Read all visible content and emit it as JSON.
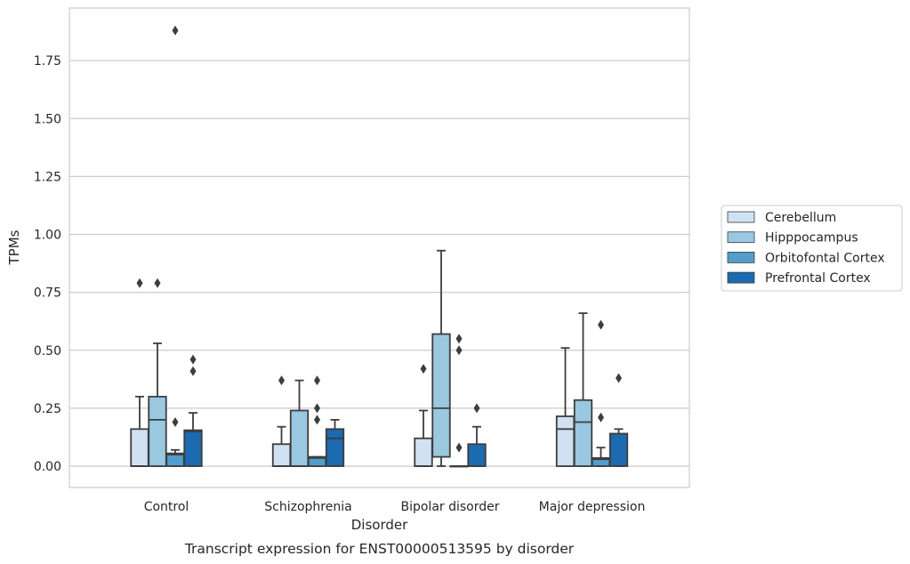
{
  "chart_data": {
    "type": "box",
    "title": "",
    "caption": "Transcript expression for ENST00000513595 by disorder",
    "xlabel": "Disorder",
    "ylabel": "TPMs",
    "ylim": [
      -0.09,
      1.98
    ],
    "yticks": [
      "0.00",
      "0.25",
      "0.50",
      "0.75",
      "1.00",
      "1.25",
      "1.50",
      "1.75"
    ],
    "ytick_values": [
      0,
      0.25,
      0.5,
      0.75,
      1.0,
      1.25,
      1.5,
      1.75
    ],
    "grid": "horizontal",
    "legend_placement": "right",
    "categories": [
      "Control",
      "Schizophrenia",
      "Bipolar disorder",
      "Major depression"
    ],
    "series": [
      {
        "name": "Cerebellum",
        "color": "#d0e1f2",
        "boxes": [
          {
            "q1": 0.0,
            "median": 0.0,
            "q3": 0.16,
            "whisker_low": 0.0,
            "whisker_high": 0.3,
            "outliers": [
              0.79
            ]
          },
          {
            "q1": 0.0,
            "median": 0.0,
            "q3": 0.095,
            "whisker_low": 0.0,
            "whisker_high": 0.17,
            "outliers": [
              0.37
            ]
          },
          {
            "q1": 0.0,
            "median": 0.0,
            "q3": 0.12,
            "whisker_low": 0.0,
            "whisker_high": 0.24,
            "outliers": [
              0.42
            ]
          },
          {
            "q1": 0.0,
            "median": 0.16,
            "q3": 0.215,
            "whisker_low": 0.0,
            "whisker_high": 0.51,
            "outliers": []
          }
        ]
      },
      {
        "name": "Hipppocampus",
        "color": "#9ac8e0",
        "boxes": [
          {
            "q1": 0.0,
            "median": 0.2,
            "q3": 0.3,
            "whisker_low": 0.0,
            "whisker_high": 0.53,
            "outliers": [
              0.79
            ]
          },
          {
            "q1": 0.0,
            "median": 0.0,
            "q3": 0.24,
            "whisker_low": 0.0,
            "whisker_high": 0.37,
            "outliers": []
          },
          {
            "q1": 0.04,
            "median": 0.25,
            "q3": 0.57,
            "whisker_low": 0.0,
            "whisker_high": 0.93,
            "outliers": []
          },
          {
            "q1": 0.0,
            "median": 0.19,
            "q3": 0.285,
            "whisker_low": 0.0,
            "whisker_high": 0.66,
            "outliers": []
          }
        ]
      },
      {
        "name": "Orbitofontal Cortex",
        "color": "#529dcc",
        "boxes": [
          {
            "q1": 0.0,
            "median": 0.05,
            "q3": 0.055,
            "whisker_low": 0.0,
            "whisker_high": 0.07,
            "outliers": [
              0.19,
              1.88
            ]
          },
          {
            "q1": 0.0,
            "median": 0.035,
            "q3": 0.04,
            "whisker_low": 0.0,
            "whisker_high": 0.04,
            "outliers": [
              0.2,
              0.25,
              0.37
            ]
          },
          {
            "q1": 0.0,
            "median": 0.0,
            "q3": 0.0,
            "whisker_low": 0.0,
            "whisker_high": 0.0,
            "outliers": [
              0.08,
              0.5,
              0.55
            ]
          },
          {
            "q1": 0.0,
            "median": 0.03,
            "q3": 0.035,
            "whisker_low": 0.0,
            "whisker_high": 0.08,
            "outliers": [
              0.21,
              0.61
            ]
          }
        ]
      },
      {
        "name": "Prefrontal Cortex",
        "color": "#1c6aaf",
        "boxes": [
          {
            "q1": 0.0,
            "median": 0.15,
            "q3": 0.155,
            "whisker_low": 0.0,
            "whisker_high": 0.23,
            "outliers": [
              0.41,
              0.46
            ]
          },
          {
            "q1": 0.0,
            "median": 0.12,
            "q3": 0.16,
            "whisker_low": 0.0,
            "whisker_high": 0.2,
            "outliers": []
          },
          {
            "q1": 0.0,
            "median": 0.0,
            "q3": 0.095,
            "whisker_low": 0.0,
            "whisker_high": 0.17,
            "outliers": [
              0.25
            ]
          },
          {
            "q1": 0.0,
            "median": 0.14,
            "q3": 0.14,
            "whisker_low": 0.0,
            "whisker_high": 0.16,
            "outliers": [
              0.38
            ]
          }
        ]
      }
    ]
  }
}
